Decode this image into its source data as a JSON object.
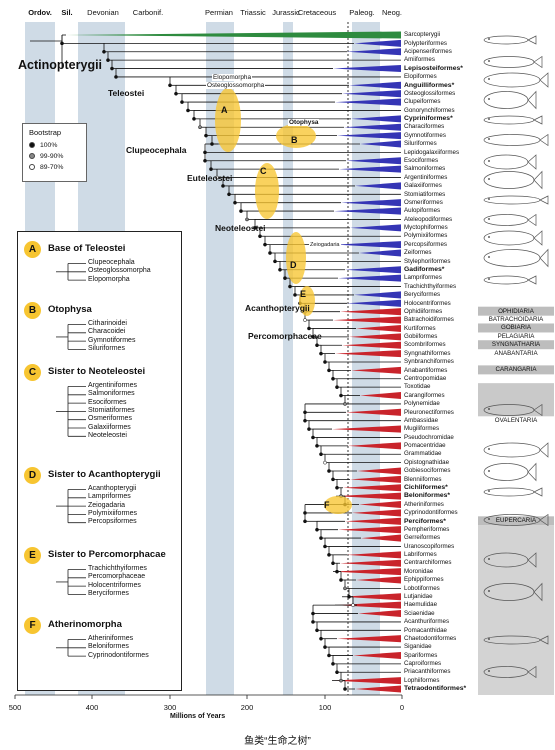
{
  "periods": [
    {
      "label": "Ordov.",
      "bold": true
    },
    {
      "label": "Sil.",
      "bold": true
    },
    {
      "label": "Devonian",
      "bold": false
    },
    {
      "label": "Carbonif.",
      "bold": false
    },
    {
      "label": "Permian",
      "bold": false
    },
    {
      "label": "Triassic",
      "bold": false
    },
    {
      "label": "Jurassic",
      "bold": false
    },
    {
      "label": "Cretaceous",
      "bold": false
    },
    {
      "label": "Paleog.",
      "bold": false
    },
    {
      "label": "Neog.",
      "bold": false
    }
  ],
  "axis": {
    "title": "Millions of Years",
    "ticks": [
      "500",
      "400",
      "300",
      "200",
      "100",
      "0"
    ]
  },
  "caption": "鱼类“生命之树”",
  "big_labels": {
    "actinopterygii": "Actinopterygii",
    "teleostei": "Teleostei",
    "clupeocephala": "Clupeocephala",
    "euteleostei": "Euteleostei",
    "neoteleostei": "Neoteleostei",
    "acanthopterygii": "Acanthopterygii",
    "percomorphaceae": "Percomorphaceae"
  },
  "clade_labels": {
    "elopomorpha": "Elopomorpha",
    "osteoglossomorpha": "Osteoglossomorpha",
    "otophysa": "Otophysa",
    "zeiogadaria": "Zeiogadaria"
  },
  "node_letters": [
    "A",
    "B",
    "C",
    "D",
    "E",
    "F"
  ],
  "bootstrap": {
    "title": "Bootstrap",
    "items": [
      {
        "label": "100%",
        "color": "#111111"
      },
      {
        "label": "99-90%",
        "color": "#888888"
      },
      {
        "label": "89-70%",
        "color": "#ffffff"
      }
    ]
  },
  "taxa": [
    {
      "name": "Sarcopterygii",
      "color": "#2e8b3f",
      "bold": false
    },
    {
      "name": "Polypteriformes",
      "color": "#3535b5",
      "bold": false
    },
    {
      "name": "Acipenseriformes",
      "color": "#3535b5",
      "bold": false
    },
    {
      "name": "Amiiformes",
      "color": "none",
      "bold": false
    },
    {
      "name": "Lepisosteiformes*",
      "color": "#3535b5",
      "bold": true
    },
    {
      "name": "Elopiformes",
      "color": "none",
      "bold": false
    },
    {
      "name": "Anguilliformes*",
      "color": "#3535b5",
      "bold": true
    },
    {
      "name": "Osteoglossiformes",
      "color": "#3535b5",
      "bold": false
    },
    {
      "name": "Clupeiformes",
      "color": "#3535b5",
      "bold": false
    },
    {
      "name": "Gonorynchiformes",
      "color": "none",
      "bold": false
    },
    {
      "name": "Cypriniformes*",
      "color": "#3535b5",
      "bold": true
    },
    {
      "name": "Characiformes",
      "color": "#3535b5",
      "bold": false
    },
    {
      "name": "Gymnotiformes",
      "color": "#3535b5",
      "bold": false
    },
    {
      "name": "Siluriformes",
      "color": "#3535b5",
      "bold": false
    },
    {
      "name": "Lepidogalaxiiformes",
      "color": "none",
      "bold": false
    },
    {
      "name": "Esociformes",
      "color": "#3535b5",
      "bold": false
    },
    {
      "name": "Salmoniformes",
      "color": "#3535b5",
      "bold": false
    },
    {
      "name": "Argentiniformes",
      "color": "none",
      "bold": false
    },
    {
      "name": "Galaxiiformes",
      "color": "#3535b5",
      "bold": false
    },
    {
      "name": "Stomiatiformes",
      "color": "none",
      "bold": false
    },
    {
      "name": "Osmeriformes",
      "color": "#3535b5",
      "bold": false
    },
    {
      "name": "Aulopiformes",
      "color": "#3535b5",
      "bold": false
    },
    {
      "name": "Ateleopodiformes",
      "color": "none",
      "bold": false
    },
    {
      "name": "Myctophiformes",
      "color": "#3535b5",
      "bold": false
    },
    {
      "name": "Polymixiiformes",
      "color": "none",
      "bold": false
    },
    {
      "name": "Percopsiformes",
      "color": "#3535b5",
      "bold": false
    },
    {
      "name": "Zeiformes",
      "color": "#3535b5",
      "bold": false
    },
    {
      "name": "Stylephoriformes",
      "color": "none",
      "bold": false
    },
    {
      "name": "Gadiformes*",
      "color": "#3535b5",
      "bold": true
    },
    {
      "name": "Lampriformes",
      "color": "#3535b5",
      "bold": false
    },
    {
      "name": "Trachichthyiformes",
      "color": "none",
      "bold": false
    },
    {
      "name": "Beryciformes",
      "color": "#3535b5",
      "bold": false
    },
    {
      "name": "Holocentriformes",
      "color": "#3535b5",
      "bold": false
    },
    {
      "name": "Ophidiiformes",
      "color": "#c9242b",
      "bold": false
    },
    {
      "name": "Batrachoidiformes",
      "color": "#c9242b",
      "bold": false
    },
    {
      "name": "Kurtiformes",
      "color": "#c9242b",
      "bold": false
    },
    {
      "name": "Gobiiformes",
      "color": "#c9242b",
      "bold": false
    },
    {
      "name": "Scombriformes",
      "color": "#c9242b",
      "bold": false
    },
    {
      "name": "Syngnathiformes",
      "color": "#c9242b",
      "bold": false
    },
    {
      "name": "Synbranchiformes",
      "color": "none",
      "bold": false
    },
    {
      "name": "Anabantiformes",
      "color": "#c9242b",
      "bold": false
    },
    {
      "name": "Centropomidae",
      "color": "none",
      "bold": false
    },
    {
      "name": "Toxotidae",
      "color": "none",
      "bold": false
    },
    {
      "name": "Carangiformes",
      "color": "#c9242b",
      "bold": false
    },
    {
      "name": "Polynemidae",
      "color": "none",
      "bold": false
    },
    {
      "name": "Pleuronectiformes",
      "color": "#c9242b",
      "bold": false
    },
    {
      "name": "Ambassidae",
      "color": "none",
      "bold": false
    },
    {
      "name": "Mugiliformes",
      "color": "#c9242b",
      "bold": false
    },
    {
      "name": "Pseudochromidae",
      "color": "none",
      "bold": false
    },
    {
      "name": "Pomacentridae",
      "color": "#c9242b",
      "bold": false
    },
    {
      "name": "Grammatidae",
      "color": "none",
      "bold": false
    },
    {
      "name": "Opistognathidae",
      "color": "none",
      "bold": false
    },
    {
      "name": "Gobiesociformes",
      "color": "#c9242b",
      "bold": false
    },
    {
      "name": "Blenniiformes",
      "color": "#c9242b",
      "bold": false
    },
    {
      "name": "Cichliformes*",
      "color": "#c9242b",
      "bold": true
    },
    {
      "name": "Beloniformes*",
      "color": "#c9242b",
      "bold": true
    },
    {
      "name": "Atheriniformes",
      "color": "#c9242b",
      "bold": false
    },
    {
      "name": "Cyprinodontiformes",
      "color": "#c9242b",
      "bold": false
    },
    {
      "name": "Perciformes*",
      "color": "#c9242b",
      "bold": true
    },
    {
      "name": "Pempheriformes",
      "color": "#c9242b",
      "bold": false
    },
    {
      "name": "Gerreiformes",
      "color": "#c9242b",
      "bold": false
    },
    {
      "name": "Uranoscopiformes",
      "color": "none",
      "bold": false
    },
    {
      "name": "Labriformes",
      "color": "#c9242b",
      "bold": false
    },
    {
      "name": "Centrarchiformes",
      "color": "#c9242b",
      "bold": false
    },
    {
      "name": "Moronidae",
      "color": "#c9242b",
      "bold": false
    },
    {
      "name": "Ephippiformes",
      "color": "#c9242b",
      "bold": false
    },
    {
      "name": "Lobotiformes",
      "color": "none",
      "bold": false
    },
    {
      "name": "Lutjanidae",
      "color": "#c9242b",
      "bold": false
    },
    {
      "name": "Haemulidae",
      "color": "#c9242b",
      "bold": false
    },
    {
      "name": "Sciaenidae",
      "color": "#c9242b",
      "bold": false
    },
    {
      "name": "Acanthuriformes",
      "color": "none",
      "bold": false
    },
    {
      "name": "Pomacanthidae",
      "color": "none",
      "bold": false
    },
    {
      "name": "Chaetodontiformes",
      "color": "#c9242b",
      "bold": false
    },
    {
      "name": "Siganidae",
      "color": "none",
      "bold": false
    },
    {
      "name": "Spariformes",
      "color": "#c9242b",
      "bold": false
    },
    {
      "name": "Caproiformes",
      "color": "none",
      "bold": false
    },
    {
      "name": "Priacanthiformes",
      "color": "none",
      "bold": false
    },
    {
      "name": "Lophiiformes",
      "color": "#c9242b",
      "bold": false
    },
    {
      "name": "Tetraodontiformes*",
      "color": "#c9242b",
      "bold": true
    }
  ],
  "right_groups": [
    {
      "label": "OPHIDIARIA",
      "shaded": true
    },
    {
      "label": "BATRACHOIDARIA",
      "shaded": false
    },
    {
      "label": "GOBIARIA",
      "shaded": true
    },
    {
      "label": "PELAGIARIA",
      "shaded": false
    },
    {
      "label": "SYNGNATHARIA",
      "shaded": true
    },
    {
      "label": "ANABANTARIA",
      "shaded": false
    },
    {
      "label": "CARANGARIA",
      "shaded": true
    },
    {
      "label": "OVALENTARIA",
      "shaded": false
    },
    {
      "label": "EUPERCARIA",
      "shaded": true
    }
  ],
  "inset": {
    "sections": [
      {
        "letter": "A",
        "title": "Base of Teleostei",
        "items": [
          "Clupeocephala",
          "Osteoglossomorpha",
          "Elopomorpha"
        ]
      },
      {
        "letter": "B",
        "title": "Otophysa",
        "items": [
          "Citharinoidei",
          "Characoidei",
          "Gymnotiformes",
          "Siluriformes"
        ]
      },
      {
        "letter": "C",
        "title": "Sister to Neoteleostei",
        "items": [
          "Argentiniformes",
          "Salmoniformes",
          "Esociformes",
          "Stomiatiformes",
          "Osmeriformes",
          "Galaxiiformes",
          "Neoteleostei"
        ]
      },
      {
        "letter": "D",
        "title": "Sister to Acanthopterygii",
        "items": [
          "Acanthopterygii",
          "Lampriformes",
          "Zeiogadaria",
          "Polymixiiformes",
          "Percopsiformes"
        ]
      },
      {
        "letter": "E",
        "title": "Sister to Percomorphacae",
        "items": [
          "Trachichthyiformes",
          "Percomorphaceae",
          "Holocentriformes",
          "Beryciformes"
        ]
      },
      {
        "letter": "F",
        "title": "Atherinomorpha",
        "items": [
          "Atheriniformes",
          "Beloniformes",
          "Cyprinodontiformes"
        ]
      }
    ]
  }
}
